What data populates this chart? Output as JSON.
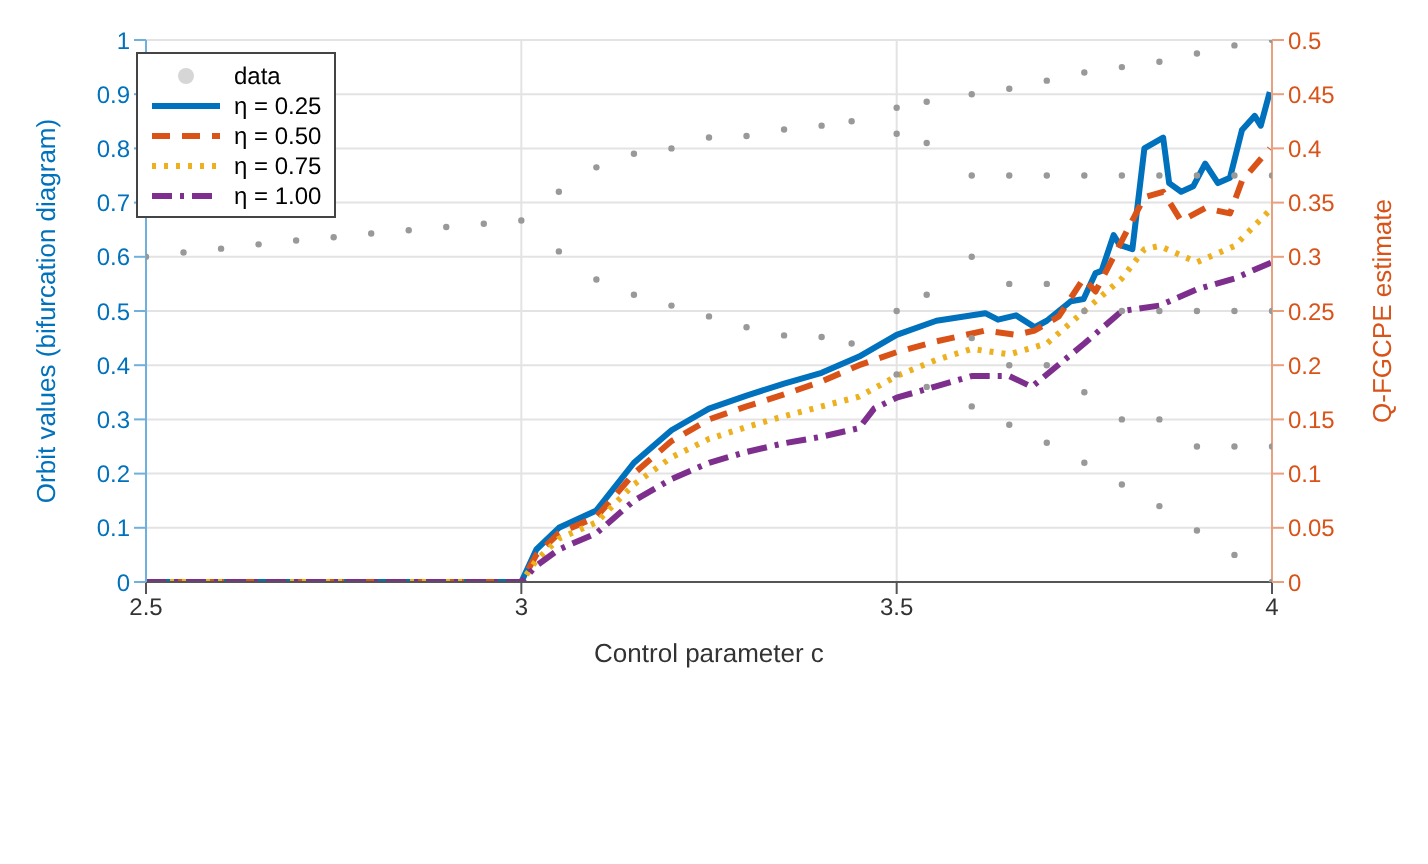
{
  "chart_data": {
    "type": "line",
    "xlabel": "Control parameter c",
    "ylabel": "Orbit values (bifurcation diagram)",
    "y2label": "Q-FGCPE estimate",
    "xlim": [
      2.5,
      4
    ],
    "xticks": [
      2.5,
      3,
      3.5,
      4
    ],
    "ylim": [
      0,
      1
    ],
    "yticks": [
      0,
      0.1,
      0.2,
      0.3,
      0.4,
      0.5,
      0.6,
      0.7,
      0.8,
      0.9,
      1
    ],
    "y2lim": [
      0,
      0.5
    ],
    "y2ticks": [
      0,
      0.05,
      0.1,
      0.15,
      0.2,
      0.25,
      0.3,
      0.35,
      0.4,
      0.45,
      0.5
    ],
    "grid": true,
    "legend": "top left",
    "series": [
      {
        "name": "data",
        "type": "scatter",
        "color": "#999999",
        "marker": "circle",
        "x": [
          2.5,
          2.55,
          2.6,
          2.65,
          2.7,
          2.75,
          2.8,
          2.85,
          2.9,
          2.95,
          3.0,
          3.05,
          3.05,
          3.1,
          3.1,
          3.15,
          3.15,
          3.2,
          3.2,
          3.25,
          3.25,
          3.3,
          3.3,
          3.35,
          3.35,
          3.4,
          3.4,
          3.44,
          3.44,
          3.5,
          3.5,
          3.5,
          3.5,
          3.54,
          3.54,
          3.54,
          3.54,
          3.6,
          3.6,
          3.6,
          3.6,
          3.6,
          3.65,
          3.65,
          3.65,
          3.65,
          3.65,
          3.7,
          3.7,
          3.7,
          3.7,
          3.7,
          3.75,
          3.75,
          3.75,
          3.75,
          3.75,
          3.8,
          3.8,
          3.8,
          3.8,
          3.8,
          3.85,
          3.85,
          3.85,
          3.85,
          3.85,
          3.9,
          3.9,
          3.9,
          3.9,
          3.9,
          3.95,
          3.95,
          3.95,
          3.95,
          3.95,
          4.0,
          4.0,
          4.0,
          4.0,
          4.0
        ],
        "values": [
          0.6,
          0.608,
          0.615,
          0.623,
          0.63,
          0.636,
          0.643,
          0.649,
          0.655,
          0.661,
          0.667,
          0.72,
          0.61,
          0.765,
          0.558,
          0.79,
          0.53,
          0.8,
          0.51,
          0.82,
          0.49,
          0.823,
          0.47,
          0.835,
          0.455,
          0.842,
          0.452,
          0.85,
          0.44,
          0.875,
          0.827,
          0.5,
          0.383,
          0.886,
          0.81,
          0.53,
          0.36,
          0.9,
          0.75,
          0.6,
          0.45,
          0.324,
          0.91,
          0.75,
          0.55,
          0.4,
          0.29,
          0.925,
          0.75,
          0.55,
          0.4,
          0.257,
          0.94,
          0.75,
          0.5,
          0.35,
          0.22,
          0.95,
          0.75,
          0.5,
          0.3,
          0.18,
          0.96,
          0.75,
          0.5,
          0.3,
          0.14,
          0.975,
          0.75,
          0.5,
          0.25,
          0.095,
          0.99,
          0.75,
          0.5,
          0.25,
          0.05,
          1.0,
          0.75,
          0.5,
          0.25,
          0.0
        ]
      },
      {
        "name": "η = 0.25",
        "axis": "y2",
        "color": "#0072bd",
        "line_style": "solid",
        "x": [
          2.5,
          3.0,
          3.02,
          3.05,
          3.1,
          3.15,
          3.2,
          3.25,
          3.3,
          3.35,
          3.4,
          3.45,
          3.5,
          3.553,
          3.618,
          3.635,
          3.659,
          3.684,
          3.7,
          3.716,
          3.732,
          3.749,
          3.765,
          3.773,
          3.789,
          3.797,
          3.814,
          3.83,
          3.855,
          3.863,
          3.879,
          3.895,
          3.911,
          3.928,
          3.944,
          3.96,
          3.977,
          3.985,
          3.997
        ],
        "values": [
          0,
          0,
          0.03,
          0.05,
          0.066,
          0.11,
          0.14,
          0.16,
          0.172,
          0.183,
          0.193,
          0.208,
          0.228,
          0.241,
          0.248,
          0.242,
          0.246,
          0.235,
          0.241,
          0.25,
          0.259,
          0.261,
          0.285,
          0.287,
          0.32,
          0.311,
          0.307,
          0.4,
          0.41,
          0.368,
          0.36,
          0.365,
          0.386,
          0.368,
          0.373,
          0.417,
          0.43,
          0.421,
          0.452
        ]
      },
      {
        "name": "η = 0.50",
        "axis": "y2",
        "color": "#d95319",
        "line_style": "dashed",
        "x": [
          2.5,
          3.0,
          3.02,
          3.05,
          3.1,
          3.15,
          3.2,
          3.25,
          3.3,
          3.35,
          3.4,
          3.45,
          3.5,
          3.553,
          3.618,
          3.659,
          3.684,
          3.716,
          3.749,
          3.765,
          3.789,
          3.83,
          3.855,
          3.879,
          3.911,
          3.944,
          3.96,
          3.997
        ],
        "values": [
          0,
          0,
          0.025,
          0.045,
          0.06,
          0.1,
          0.13,
          0.15,
          0.162,
          0.173,
          0.185,
          0.2,
          0.212,
          0.222,
          0.232,
          0.228,
          0.232,
          0.245,
          0.28,
          0.268,
          0.3,
          0.355,
          0.36,
          0.333,
          0.345,
          0.34,
          0.37,
          0.4
        ]
      },
      {
        "name": "η = 0.75",
        "axis": "y2",
        "color": "#edb120",
        "line_style": "dotted",
        "x": [
          2.5,
          3.0,
          3.02,
          3.05,
          3.1,
          3.15,
          3.2,
          3.25,
          3.3,
          3.35,
          3.4,
          3.45,
          3.5,
          3.553,
          3.6,
          3.65,
          3.7,
          3.75,
          3.8,
          3.83,
          3.85,
          3.9,
          3.95,
          4.0
        ],
        "values": [
          0,
          0,
          0.02,
          0.04,
          0.055,
          0.09,
          0.115,
          0.132,
          0.143,
          0.153,
          0.162,
          0.171,
          0.19,
          0.205,
          0.215,
          0.21,
          0.22,
          0.25,
          0.28,
          0.307,
          0.31,
          0.295,
          0.31,
          0.345
        ]
      },
      {
        "name": "η = 1.00",
        "axis": "y2",
        "color": "#7e2f8e",
        "line_style": "dashdot",
        "x": [
          2.5,
          3.0,
          3.02,
          3.05,
          3.1,
          3.15,
          3.2,
          3.25,
          3.3,
          3.35,
          3.4,
          3.45,
          3.47,
          3.5,
          3.55,
          3.6,
          3.65,
          3.68,
          3.75,
          3.8,
          3.85,
          3.9,
          3.95,
          4.0
        ],
        "values": [
          0,
          0,
          0.015,
          0.03,
          0.045,
          0.075,
          0.095,
          0.11,
          0.12,
          0.128,
          0.134,
          0.142,
          0.16,
          0.17,
          0.18,
          0.19,
          0.19,
          0.18,
          0.22,
          0.25,
          0.255,
          0.27,
          0.28,
          0.295
        ]
      }
    ]
  }
}
